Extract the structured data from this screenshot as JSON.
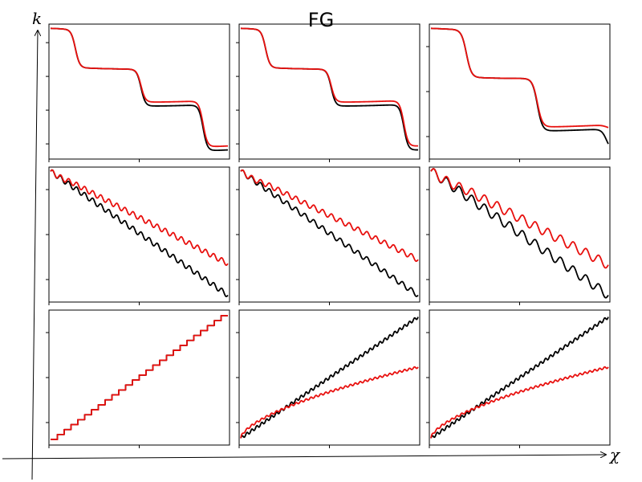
{
  "title": "FG",
  "axis_labels": {
    "vertical": "k",
    "horizontal": "χ"
  },
  "colors": {
    "series_a": "#000000",
    "series_b": "#e8100e"
  },
  "chart_data": [
    {
      "type": "line",
      "row": 1,
      "col": 1,
      "x_range": [
        0,
        1
      ],
      "y_range": [
        0,
        1
      ],
      "y_ticks": 4,
      "x_ticks": 2,
      "series": [
        {
          "color": "black",
          "shape": "steps",
          "steps": [
            [
              0.14,
              0.69
            ],
            [
              0.51,
              0.41
            ],
            [
              0.86,
              0.06
            ]
          ],
          "start": 0.98,
          "width": 0.012
        },
        {
          "color": "red",
          "shape": "steps",
          "steps": [
            [
              0.14,
              0.69
            ],
            [
              0.51,
              0.44
            ],
            [
              0.86,
              0.09
            ]
          ],
          "start": 0.98,
          "width": 0.012
        }
      ]
    },
    {
      "type": "line",
      "row": 1,
      "col": 2,
      "x_range": [
        0,
        1
      ],
      "y_range": [
        0,
        1
      ],
      "y_ticks": 4,
      "x_ticks": 2,
      "series": [
        {
          "color": "black",
          "shape": "steps",
          "steps": [
            [
              0.14,
              0.69
            ],
            [
              0.51,
              0.41
            ],
            [
              0.92,
              0.06
            ]
          ],
          "start": 0.98,
          "width": 0.012
        },
        {
          "color": "red",
          "shape": "steps",
          "steps": [
            [
              0.14,
              0.69
            ],
            [
              0.51,
              0.44
            ],
            [
              0.92,
              0.09
            ]
          ],
          "start": 0.98,
          "width": 0.012
        }
      ]
    },
    {
      "type": "line",
      "row": 1,
      "col": 3,
      "x_range": [
        0,
        1
      ],
      "y_range": [
        0,
        1
      ],
      "y_ticks": 3,
      "x_ticks": 2,
      "series": [
        {
          "color": "black",
          "shape": "steps",
          "steps": [
            [
              0.2,
              0.62
            ],
            [
              0.6,
              0.22
            ],
            [
              0.99,
              0.05
            ]
          ],
          "start": 0.98,
          "width": 0.014
        },
        {
          "color": "red",
          "shape": "steps",
          "steps": [
            [
              0.2,
              0.62
            ],
            [
              0.6,
              0.25
            ],
            [
              0.99,
              0.22
            ]
          ],
          "start": 0.98,
          "width": 0.014
        }
      ]
    },
    {
      "type": "line",
      "row": 2,
      "col": 1,
      "x_range": [
        0,
        1
      ],
      "y_range": [
        0,
        1
      ],
      "y_ticks": 3,
      "x_ticks": 2,
      "series": [
        {
          "color": "black",
          "shape": "stair-line",
          "y0": 0.98,
          "y1": 0.04,
          "n": 22,
          "amp": 0.02
        },
        {
          "color": "red",
          "shape": "stair-line",
          "y0": 0.98,
          "y1": 0.28,
          "n": 22,
          "amp": 0.02,
          "follow": 0.12
        }
      ]
    },
    {
      "type": "line",
      "row": 2,
      "col": 2,
      "x_range": [
        0,
        1
      ],
      "y_range": [
        0,
        1
      ],
      "y_ticks": 3,
      "x_ticks": 2,
      "series": [
        {
          "color": "black",
          "shape": "stair-line",
          "y0": 0.98,
          "y1": 0.04,
          "n": 20,
          "amp": 0.02
        },
        {
          "color": "red",
          "shape": "stair-line",
          "y0": 0.98,
          "y1": 0.31,
          "n": 20,
          "amp": 0.02,
          "follow": 0.15
        }
      ]
    },
    {
      "type": "line",
      "row": 2,
      "col": 3,
      "x_range": [
        0,
        1
      ],
      "y_range": [
        0,
        1
      ],
      "y_ticks": 3,
      "x_ticks": 2,
      "series": [
        {
          "color": "black",
          "shape": "stair-line",
          "y0": 0.98,
          "y1": 0.04,
          "n": 14,
          "amp": 0.035
        },
        {
          "color": "red",
          "shape": "stair-line",
          "y0": 0.98,
          "y1": 0.27,
          "n": 14,
          "amp": 0.035,
          "follow": 0.2
        }
      ]
    },
    {
      "type": "line",
      "row": 3,
      "col": 1,
      "x_range": [
        0,
        1
      ],
      "y_range": [
        0,
        1
      ],
      "y_ticks": 3,
      "x_ticks": 2,
      "series": [
        {
          "color": "black",
          "shape": "staircase",
          "y0": 0.03,
          "y1": 0.97,
          "n": 26
        },
        {
          "color": "red",
          "shape": "staircase",
          "y0": 0.03,
          "y1": 0.97,
          "n": 26
        }
      ]
    },
    {
      "type": "line",
      "row": 3,
      "col": 2,
      "x_range": [
        0,
        1
      ],
      "y_range": [
        0,
        1
      ],
      "y_ticks": 3,
      "x_ticks": 2,
      "series": [
        {
          "color": "black",
          "shape": "wiggle-line",
          "y0": 0.04,
          "y1": 0.96,
          "n": 36,
          "amp": 0.012
        },
        {
          "color": "red",
          "shape": "wiggle-curve",
          "y0": 0.04,
          "y1": 0.58,
          "n": 36,
          "amp": 0.008
        }
      ]
    },
    {
      "type": "line",
      "row": 3,
      "col": 3,
      "x_range": [
        0,
        1
      ],
      "y_range": [
        0,
        1
      ],
      "y_ticks": 3,
      "x_ticks": 2,
      "series": [
        {
          "color": "black",
          "shape": "wiggle-line",
          "y0": 0.04,
          "y1": 0.96,
          "n": 36,
          "amp": 0.012
        },
        {
          "color": "red",
          "shape": "wiggle-curve",
          "y0": 0.04,
          "y1": 0.58,
          "n": 36,
          "amp": 0.008
        }
      ]
    }
  ]
}
